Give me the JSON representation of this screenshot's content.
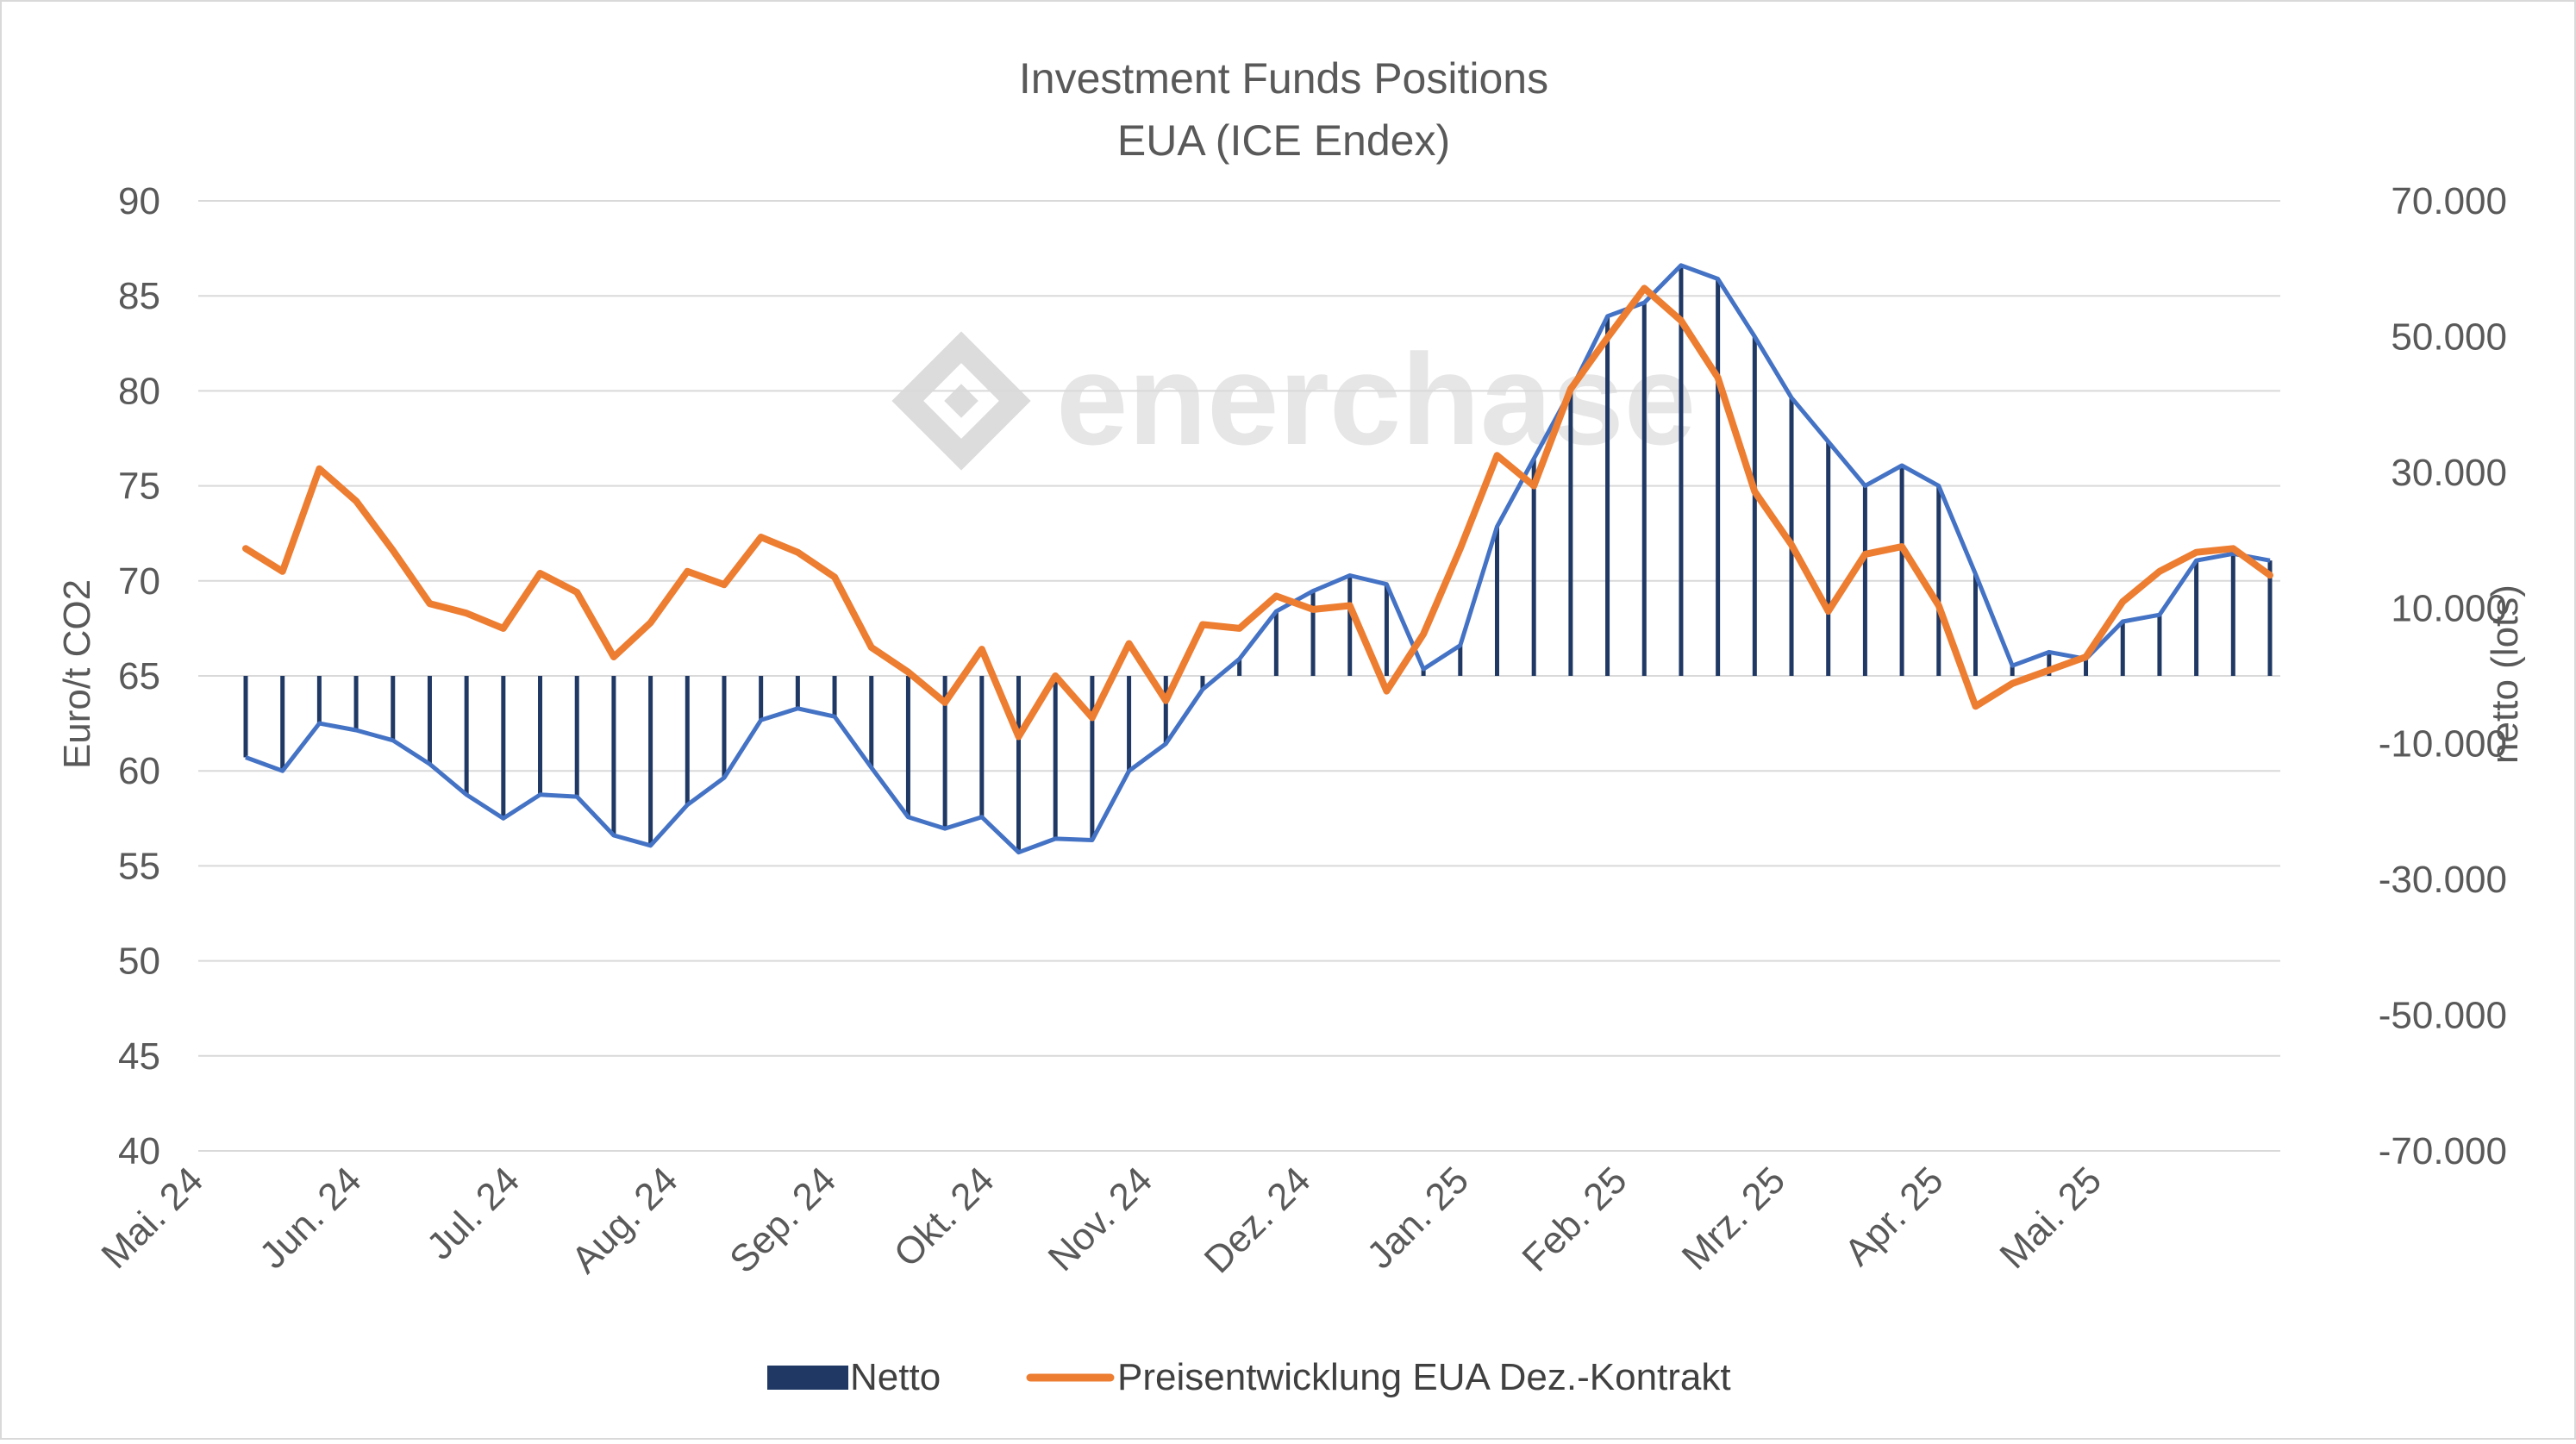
{
  "chart_data": {
    "type": "bar+line",
    "title": "Investment Funds Positions",
    "subtitle": "EUA (ICE Endex)",
    "watermark": "enerchase",
    "y_left": {
      "label": "Euro/t CO2",
      "range": [
        40,
        90
      ],
      "ticks": [
        "90",
        "85",
        "80",
        "75",
        "70",
        "65",
        "60",
        "55",
        "50",
        "45",
        "40"
      ]
    },
    "y_right": {
      "label": "netto (lots)",
      "range": [
        -70000,
        70000
      ],
      "ticks": [
        "70.000",
        "50.000",
        "30.000",
        "10.000",
        "-10.000",
        "-30.000",
        "-50.000",
        "-70.000"
      ]
    },
    "x_labels": [
      "Mai. 24",
      "Jun. 24",
      "Jul. 24",
      "Aug. 24",
      "Sep. 24",
      "Okt. 24",
      "Nov. 24",
      "Dez. 24",
      "Jan. 25",
      "Feb. 25",
      "Mrz. 25",
      "Apr. 25",
      "Mai. 25"
    ],
    "series": [
      {
        "name": "Netto",
        "kind": "bar",
        "axis": "right",
        "color": "#1f3864",
        "values": [
          -12000,
          -14000,
          -7000,
          -8000,
          -9500,
          -13000,
          -17500,
          -21000,
          -17500,
          -17800,
          -23500,
          -25000,
          -19000,
          -15000,
          -6500,
          -4800,
          -6000,
          -13500,
          -20800,
          -22500,
          -20800,
          -26000,
          -24000,
          -24200,
          -14000,
          -10000,
          -2000,
          2500,
          9500,
          12500,
          14800,
          13500,
          1000,
          4500,
          22000,
          32000,
          42000,
          53000,
          55000,
          60500,
          58500,
          50000,
          41000,
          34500,
          28000,
          31000,
          28000,
          15000,
          1500,
          3500,
          2500,
          8000,
          9000,
          17000,
          18000,
          17000
        ]
      },
      {
        "name": "Preisentwicklung EUA Dez.-Kontrakt",
        "kind": "line",
        "axis": "left",
        "color": "#ed7d31",
        "values": [
          71.7,
          70.5,
          75.9,
          74.2,
          71.6,
          68.8,
          68.3,
          67.5,
          70.4,
          69.4,
          66.0,
          67.8,
          70.5,
          69.8,
          72.3,
          71.5,
          70.2,
          66.5,
          65.2,
          63.6,
          66.4,
          61.8,
          65.0,
          62.8,
          66.7,
          63.7,
          67.7,
          67.5,
          69.2,
          68.5,
          68.7,
          64.2,
          67.2,
          71.7,
          76.6,
          75.0,
          80.1,
          82.8,
          85.4,
          83.7,
          80.7,
          74.7,
          71.9,
          68.4,
          71.4,
          71.8,
          68.7,
          63.4,
          64.6,
          65.3,
          66.0,
          68.9,
          70.5,
          71.5,
          71.7,
          70.3
        ]
      }
    ],
    "legend": [
      "Netto",
      "Preisentwicklung EUA Dez.-Kontrakt"
    ],
    "legend_position": "bottom"
  }
}
